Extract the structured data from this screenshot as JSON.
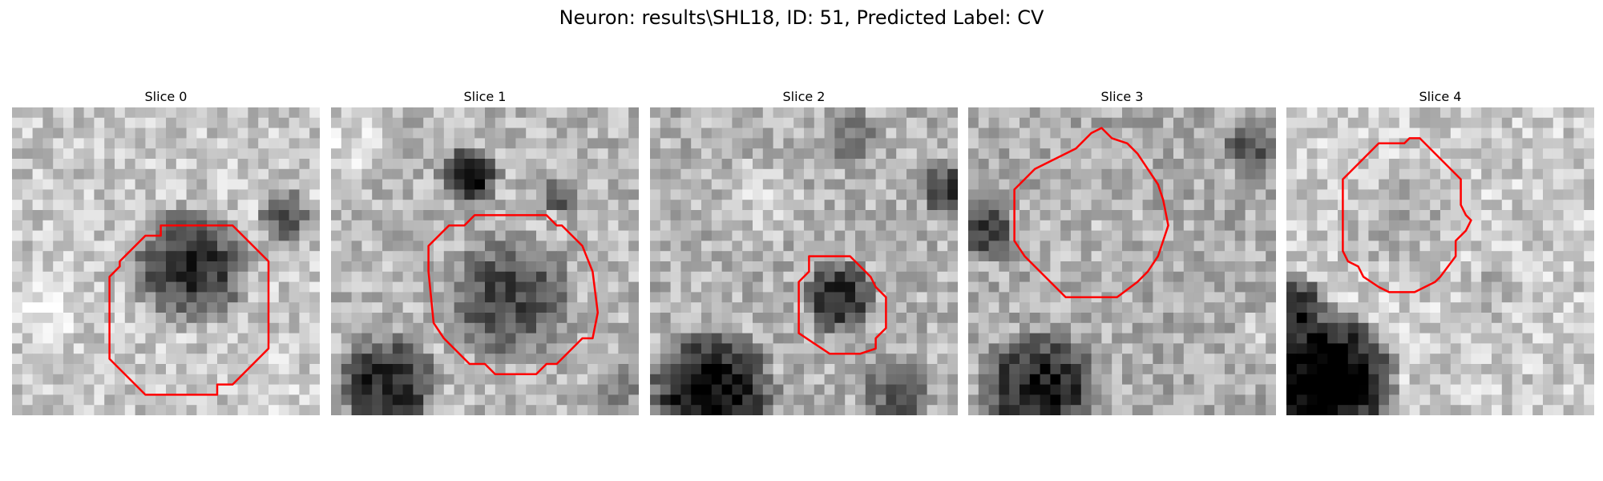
{
  "figure": {
    "title": "Neuron: results\\SHL18, ID: 51, Predicted Label: CV"
  },
  "panels": [
    {
      "title": "Slice 0"
    },
    {
      "title": "Slice 1"
    },
    {
      "title": "Slice 2"
    },
    {
      "title": "Slice 3"
    },
    {
      "title": "Slice 4"
    }
  ],
  "colors": {
    "contour": "#ff0000",
    "background": "#ffffff"
  }
}
